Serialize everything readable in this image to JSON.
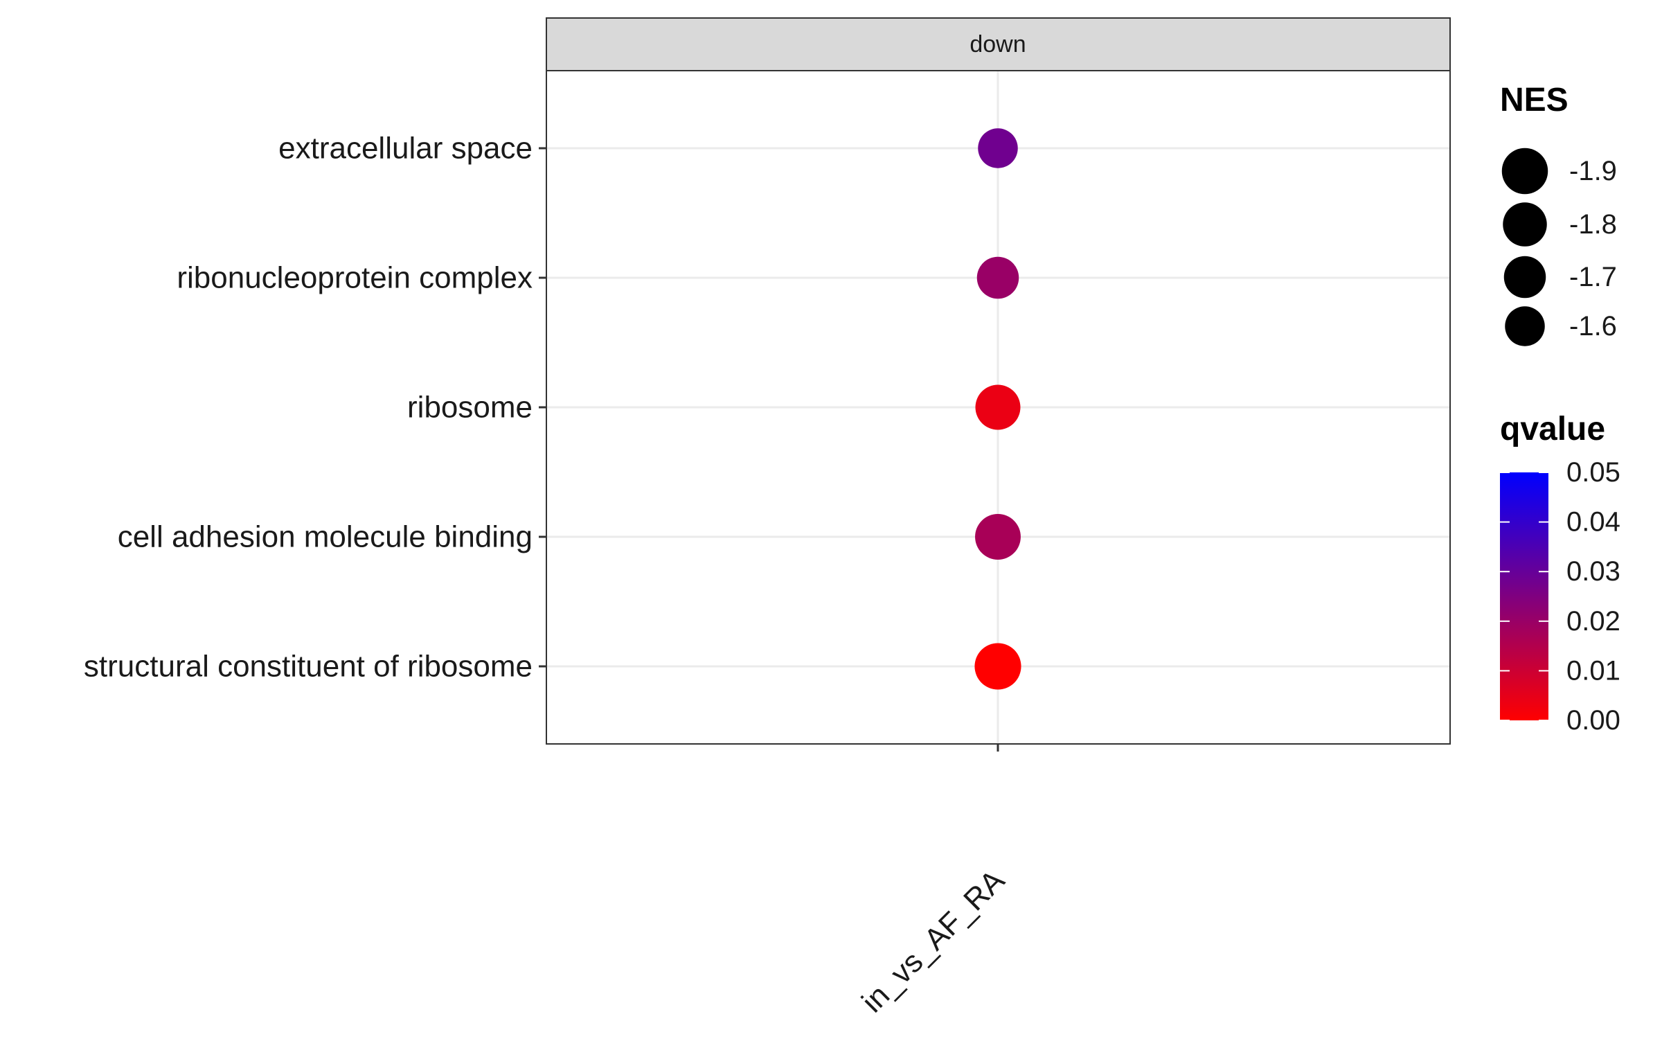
{
  "chart_data": {
    "type": "scatter",
    "facet_label": "down",
    "x_categories": [
      "in_vs_AF_RA"
    ],
    "y_categories": [
      "extracellular space",
      "ribonucleoprotein complex",
      "ribosome",
      "cell adhesion molecule binding",
      "structural constituent of ribosome"
    ],
    "points": [
      {
        "term": "extracellular space",
        "x": "in_vs_AF_RA",
        "NES": -1.6,
        "qvalue": 0.028
      },
      {
        "term": "ribonucleoprotein complex",
        "x": "in_vs_AF_RA",
        "NES": -1.7,
        "qvalue": 0.02
      },
      {
        "term": "ribosome",
        "x": "in_vs_AF_RA",
        "NES": -1.85,
        "qvalue": 0.004
      },
      {
        "term": "cell adhesion molecule binding",
        "x": "in_vs_AF_RA",
        "NES": -1.88,
        "qvalue": 0.017
      },
      {
        "term": "structural constituent of ribosome",
        "x": "in_vs_AF_RA",
        "NES": -1.92,
        "qvalue": 0.0
      }
    ],
    "size_legend": {
      "title": "NES",
      "values": [
        -1.9,
        -1.8,
        -1.7,
        -1.6
      ],
      "labels": [
        "-1.9",
        "-1.8",
        "-1.7",
        "-1.6"
      ]
    },
    "color_legend": {
      "title": "qvalue",
      "range": [
        0.0,
        0.05
      ],
      "ticks": [
        0.05,
        0.04,
        0.03,
        0.02,
        0.01,
        0.0
      ],
      "labels": [
        "0.05",
        "0.04",
        "0.03",
        "0.02",
        "0.01",
        "0.00"
      ],
      "low_color": "#ff0000",
      "high_color": "#0000ff"
    },
    "grid": true,
    "legend_position": "right"
  }
}
